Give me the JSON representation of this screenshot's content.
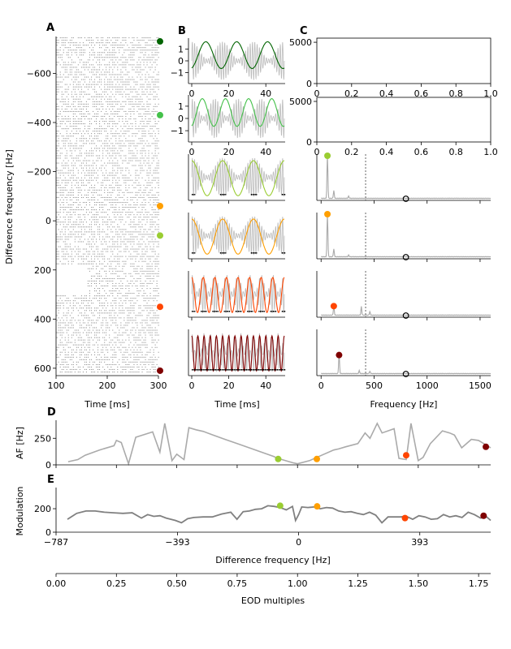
{
  "panel_letters": {
    "A": "A",
    "B": "B",
    "C": "C",
    "D": "D",
    "E": "E"
  },
  "colors": {
    "dark_green": "#006400",
    "green": "#44c14a",
    "yellow_green": "#9acd32",
    "orange": "#ff9f00",
    "red_orange": "#ff4500",
    "dark_red": "#7f0000",
    "gray": "#aaaaaa",
    "dark_gray": "#808080"
  },
  "chart_data": [
    {
      "id": "A",
      "type": "scatter",
      "title": "",
      "xlabel": "Time [ms]",
      "ylabel": "Difference frequency [Hz]",
      "xlim": [
        100,
        300
      ],
      "ylim": [
        -750,
        630
      ],
      "y_inverted": true,
      "xticks": [
        100,
        200,
        300
      ],
      "yticks": [
        -600,
        -400,
        -200,
        0,
        200,
        400,
        600
      ],
      "ytick_labels": [
        "−600",
        "−400",
        "−200",
        "0",
        "200",
        "400",
        "600"
      ],
      "raster": "spike raster, one row per difference frequency, gray dots",
      "markers": [
        {
          "y": -730,
          "color": "#006400"
        },
        {
          "y": -430,
          "color": "#44c14a"
        },
        {
          "y": 60,
          "color": "#9acd32"
        },
        {
          "y": -60,
          "color": "#ff9f00"
        },
        {
          "y": 350,
          "color": "#ff4500"
        },
        {
          "y": 610,
          "color": "#7f0000"
        }
      ]
    },
    {
      "id": "B",
      "type": "line",
      "xlabel": "Time [ms]",
      "xlim": [
        0,
        50
      ],
      "xticks": [
        0,
        20,
        40
      ],
      "rows": [
        {
          "yticks": [
            1,
            0,
            -1
          ],
          "ytick_labels": [
            "1",
            "0",
            "−1"
          ],
          "envelope_color": "#006400",
          "beat_cycles": 3,
          "spikes": false,
          "show_xticks": true
        },
        {
          "yticks": [
            1,
            0,
            -1
          ],
          "ytick_labels": [
            "1",
            "0",
            "−1"
          ],
          "envelope_color": "#44c14a",
          "beat_cycles": 4,
          "spikes": false,
          "show_xticks": true
        },
        {
          "yticks": [],
          "envelope_color": "#9acd32",
          "beat_cycles": 3,
          "spikes": true,
          "show_xticks": false
        },
        {
          "yticks": [],
          "envelope_color": "#ff9f00",
          "beat_cycles": 3,
          "spikes": true,
          "show_xticks": false
        },
        {
          "yticks": [],
          "envelope_color": "#ff4500",
          "beat_cycles": 8,
          "spikes": true,
          "show_xticks": false
        },
        {
          "yticks": [],
          "envelope_color": "#7f0000",
          "beat_cycles": 15,
          "spikes": true,
          "show_xticks": true
        }
      ]
    },
    {
      "id": "C",
      "type": "line",
      "xlabel": "Frequency [Hz]",
      "rows": [
        {
          "xlim": [
            0,
            1
          ],
          "xticks": [
            0,
            0.2,
            0.4,
            0.6,
            0.8,
            1.0
          ],
          "xtick_labels": [
            "0",
            "0.2",
            "0.4",
            "0.6",
            "0.8",
            "1.0"
          ],
          "ylim": [
            0,
            5500
          ],
          "yticks": [
            0,
            5000
          ],
          "empty": true
        },
        {
          "xlim": [
            0,
            1
          ],
          "xticks": [
            0,
            0.2,
            0.4,
            0.6,
            0.8,
            1.0
          ],
          "xtick_labels": [
            "0",
            "0.2",
            "0.4",
            "0.6",
            "0.8",
            "1.0"
          ],
          "ylim": [
            0,
            5500
          ],
          "yticks": [
            0,
            5000
          ],
          "empty": true
        },
        {
          "xlim": [
            -40,
            1600
          ],
          "peaks": [
            [
              60,
              1.0
            ],
            [
              120,
              0.18
            ],
            [
              260,
              0.05
            ]
          ],
          "marker": {
            "x": 60,
            "y": 1.0,
            "color": "#9acd32"
          },
          "eod_marker": 800
        },
        {
          "xlim": [
            -40,
            1600
          ],
          "peaks": [
            [
              60,
              1.0
            ],
            [
              120,
              0.18
            ],
            [
              260,
              0.04
            ]
          ],
          "marker": {
            "x": 60,
            "y": 1.0,
            "color": "#ff9f00"
          },
          "eod_marker": 800
        },
        {
          "xlim": [
            -40,
            1600
          ],
          "peaks": [
            [
              120,
              0.22
            ],
            [
              380,
              0.2
            ],
            [
              460,
              0.08
            ]
          ],
          "marker": {
            "x": 120,
            "y": 0.22,
            "color": "#ff4500"
          },
          "eod_marker": 800
        },
        {
          "xlim": [
            -40,
            1600
          ],
          "peaks": [
            [
              170,
              0.44
            ],
            [
              360,
              0.07
            ],
            [
              460,
              0.05
            ]
          ],
          "marker": {
            "x": 170,
            "y": 0.44,
            "color": "#7f0000"
          },
          "eod_marker": 800,
          "show_xticks": true,
          "xticks": [
            0,
            500,
            1000,
            1500
          ]
        }
      ],
      "vline_x": 420
    },
    {
      "id": "D",
      "type": "line",
      "title": "",
      "ylabel": "AF [Hz]",
      "xlim": [
        -787,
        1.8
      ],
      "yticks": [
        0,
        250
      ],
      "ylim": [
        0,
        420
      ],
      "series": [
        {
          "color": "#aaaaaa",
          "x": [
            0.05,
            0.09,
            0.12,
            0.18,
            0.24,
            0.25,
            0.27,
            0.3,
            0.33,
            0.4,
            0.43,
            0.45,
            0.48,
            0.5,
            0.53,
            0.55,
            0.58,
            0.61,
            0.65,
            0.7,
            0.75,
            0.8,
            0.85,
            0.9,
            0.92,
            0.98,
            1.0,
            1.05,
            1.07,
            1.1,
            1.15,
            1.17,
            1.2,
            1.25,
            1.28,
            1.3,
            1.33,
            1.35,
            1.4,
            1.42,
            1.45,
            1.47,
            1.5,
            1.52,
            1.55,
            1.6,
            1.63,
            1.65,
            1.68,
            1.72,
            1.75,
            1.8
          ],
          "y": [
            30,
            50,
            90,
            140,
            180,
            230,
            210,
            10,
            260,
            310,
            120,
            390,
            40,
            100,
            50,
            350,
            330,
            315,
            280,
            240,
            200,
            160,
            120,
            80,
            60,
            20,
            10,
            40,
            60,
            90,
            140,
            150,
            170,
            200,
            300,
            250,
            390,
            300,
            340,
            60,
            50,
            390,
            40,
            70,
            200,
            320,
            300,
            280,
            160,
            240,
            230,
            160
          ]
        }
      ],
      "markers": [
        {
          "x": 0.92,
          "y": 55,
          "color": "#9acd32"
        },
        {
          "x": 1.08,
          "y": 55,
          "color": "#ff9f00"
        },
        {
          "x": 1.45,
          "y": 90,
          "color": "#ff4500"
        },
        {
          "x": 1.78,
          "y": 170,
          "color": "#7f0000"
        }
      ]
    },
    {
      "id": "E",
      "type": "line",
      "ylabel": "Modulation",
      "xlabel": "Difference frequency [Hz]",
      "xticks": [
        -787,
        -393,
        0,
        393
      ],
      "xtick_labels": [
        "−787",
        "−393",
        "0",
        "393"
      ],
      "xlim": [
        -787,
        623
      ],
      "yticks": [
        0,
        200
      ],
      "ylim": [
        0,
        380
      ],
      "series": [
        {
          "color": "#808080",
          "x": [
            -750,
            -720,
            -690,
            -660,
            -630,
            -600,
            -570,
            -540,
            -510,
            -490,
            -470,
            -450,
            -430,
            -400,
            -380,
            -360,
            -340,
            -310,
            -280,
            -250,
            -220,
            -200,
            -180,
            -160,
            -140,
            -120,
            -100,
            -80,
            -60,
            -40,
            -20,
            -10,
            0,
            10,
            30,
            50,
            70,
            90,
            110,
            130,
            150,
            170,
            190,
            210,
            230,
            250,
            270,
            290,
            310,
            330,
            350,
            370,
            390,
            410,
            430,
            450,
            470,
            490,
            510,
            530,
            550,
            570,
            590,
            610,
            623
          ],
          "y": [
            110,
            160,
            180,
            180,
            170,
            165,
            160,
            165,
            120,
            150,
            135,
            140,
            120,
            100,
            80,
            115,
            125,
            130,
            130,
            155,
            170,
            110,
            175,
            180,
            195,
            200,
            225,
            220,
            210,
            190,
            220,
            100,
            150,
            215,
            210,
            215,
            200,
            210,
            205,
            180,
            170,
            175,
            160,
            150,
            170,
            145,
            80,
            130,
            130,
            130,
            135,
            110,
            140,
            130,
            110,
            115,
            150,
            130,
            140,
            125,
            170,
            150,
            120,
            130,
            100
          ]
        }
      ],
      "markers": [
        {
          "x": -60,
          "y": 225,
          "color": "#9acd32"
        },
        {
          "x": 60,
          "y": 220,
          "color": "#ff9f00"
        },
        {
          "x": 345,
          "y": 120,
          "color": "#ff4500"
        },
        {
          "x": 600,
          "y": 140,
          "color": "#7f0000"
        }
      ]
    },
    {
      "id": "EOD",
      "type": "line",
      "xlabel": "EOD multiples",
      "xlim": [
        0,
        1.8
      ],
      "xticks": [
        0,
        0.25,
        0.5,
        0.75,
        1.0,
        1.25,
        1.5,
        1.75
      ],
      "xtick_labels": [
        "0.00",
        "0.25",
        "0.50",
        "0.75",
        "1.00",
        "1.25",
        "1.50",
        "1.75"
      ]
    }
  ]
}
